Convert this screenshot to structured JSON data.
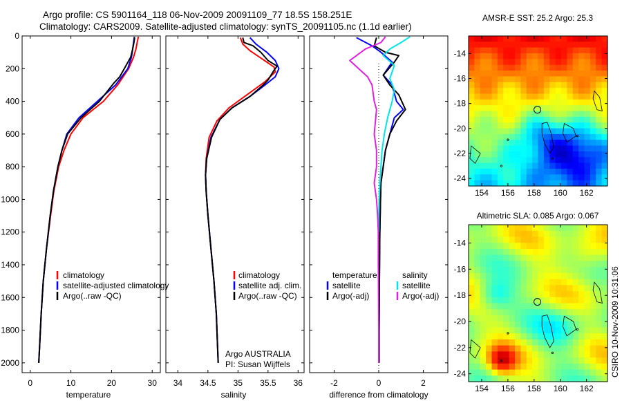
{
  "header": {
    "line1": "Argo profile: CS 5901164_118 06-Nov-2009 20091109_77 18.5S 158.251E",
    "line2": "Climatology: CARS2009. Satellite-adjusted climatology: synTS_20091105.nc (1.1d earlier)"
  },
  "credit": "CSIRO 10-Nov-2009 10:31:06",
  "colors": {
    "red": "#ff0000",
    "blue": "#0000ff",
    "black": "#000000",
    "cyan": "#00e5e5",
    "magenta": "#e020e0"
  },
  "chart_data": [
    {
      "type": "line",
      "xlabel": "temperature",
      "xlim": [
        -2,
        32
      ],
      "xticks": [
        "0",
        "10",
        "20",
        "30"
      ],
      "xtick_values": [
        0,
        10,
        20,
        30
      ],
      "ylim": [
        0,
        2060
      ],
      "yticks": [
        "0",
        "200",
        "400",
        "600",
        "800",
        "1000",
        "1200",
        "1400",
        "1600",
        "1800",
        "2000"
      ],
      "ytick_values": [
        0,
        200,
        400,
        600,
        800,
        1000,
        1200,
        1400,
        1600,
        1800,
        2000
      ],
      "legend_entries": [
        "climatology",
        "satellite-adjusted climatology",
        "Argo(..raw -QC)"
      ],
      "series": [
        {
          "name": "climatology",
          "color": "#ff0000",
          "points": [
            [
              26.6,
              5
            ],
            [
              26.3,
              40
            ],
            [
              26,
              80
            ],
            [
              25.4,
              130
            ],
            [
              24.2,
              200
            ],
            [
              21.5,
              300
            ],
            [
              18,
              400
            ],
            [
              13,
              500
            ],
            [
              10,
              600
            ],
            [
              8.3,
              700
            ],
            [
              7,
              800
            ],
            [
              5.8,
              950
            ],
            [
              5,
              1100
            ],
            [
              4,
              1300
            ],
            [
              3.2,
              1500
            ],
            [
              2.7,
              1700
            ],
            [
              2.3,
              1900
            ],
            [
              2.1,
              2000
            ]
          ]
        },
        {
          "name": "satellite-adjusted climatology",
          "color": "#0000ff",
          "points": [
            [
              25.6,
              5
            ],
            [
              25.4,
              40
            ],
            [
              25.2,
              80
            ],
            [
              24.9,
              130
            ],
            [
              24,
              200
            ],
            [
              21,
              300
            ],
            [
              16.5,
              400
            ],
            [
              12,
              500
            ],
            [
              9,
              600
            ],
            [
              7.8,
              700
            ],
            [
              6.8,
              800
            ],
            [
              5.7,
              950
            ],
            [
              4.9,
              1100
            ],
            [
              4,
              1300
            ],
            [
              3.2,
              1500
            ],
            [
              2.7,
              1700
            ],
            [
              2.3,
              1900
            ],
            [
              2.1,
              2000
            ]
          ]
        },
        {
          "name": "Argo(..raw -QC)",
          "color": "#000000",
          "points": [
            [
              25.7,
              10
            ],
            [
              25.5,
              40
            ],
            [
              25.2,
              80
            ],
            [
              24.7,
              130
            ],
            [
              23.8,
              170
            ],
            [
              22,
              250
            ],
            [
              20.5,
              290
            ],
            [
              17,
              400
            ],
            [
              12.5,
              500
            ],
            [
              9.2,
              600
            ],
            [
              7.8,
              700
            ],
            [
              6.8,
              800
            ],
            [
              5.7,
              950
            ],
            [
              4.9,
              1100
            ],
            [
              4,
              1300
            ],
            [
              3.2,
              1500
            ],
            [
              2.7,
              1700
            ],
            [
              2.3,
              1900
            ],
            [
              2.1,
              2000
            ]
          ]
        }
      ]
    },
    {
      "type": "line",
      "xlabel": "salinity",
      "xlim": [
        33.8,
        36.1
      ],
      "xticks": [
        "34",
        "34.5",
        "35",
        "35.5",
        "36"
      ],
      "xtick_values": [
        34,
        34.5,
        35,
        35.5,
        36
      ],
      "ylim": [
        0,
        2060
      ],
      "legend_entries": [
        "climatology",
        "satellite adj. clim.",
        "Argo(..raw -QC)"
      ],
      "annotation": [
        "Argo AUSTRALIA",
        "PI: Susan Wijffels"
      ],
      "series": [
        {
          "name": "climatology",
          "color": "#ff0000",
          "points": [
            [
              35.04,
              10
            ],
            [
              35.08,
              50
            ],
            [
              35.2,
              90
            ],
            [
              35.4,
              140
            ],
            [
              35.6,
              190
            ],
            [
              35.62,
              220
            ],
            [
              35.45,
              280
            ],
            [
              35.15,
              360
            ],
            [
              34.85,
              440
            ],
            [
              34.65,
              520
            ],
            [
              34.52,
              620
            ],
            [
              34.47,
              750
            ],
            [
              34.46,
              850
            ],
            [
              34.47,
              950
            ],
            [
              34.5,
              1100
            ],
            [
              34.55,
              1300
            ],
            [
              34.6,
              1500
            ],
            [
              34.64,
              1700
            ],
            [
              34.66,
              1900
            ],
            [
              34.67,
              2000
            ]
          ]
        },
        {
          "name": "satellite adj. clim.",
          "color": "#0000ff",
          "points": [
            [
              35.2,
              10
            ],
            [
              35.3,
              50
            ],
            [
              35.48,
              100
            ],
            [
              35.62,
              150
            ],
            [
              35.68,
              200
            ],
            [
              35.62,
              250
            ],
            [
              35.45,
              300
            ],
            [
              35.2,
              370
            ],
            [
              34.9,
              440
            ],
            [
              34.7,
              510
            ],
            [
              34.55,
              620
            ],
            [
              34.48,
              750
            ],
            [
              34.46,
              850
            ],
            [
              34.47,
              950
            ],
            [
              34.5,
              1100
            ],
            [
              34.55,
              1300
            ],
            [
              34.6,
              1500
            ],
            [
              34.64,
              1700
            ],
            [
              34.66,
              1900
            ],
            [
              34.67,
              2000
            ]
          ]
        },
        {
          "name": "Argo(..raw -QC)",
          "color": "#000000",
          "points": [
            [
              35.08,
              10
            ],
            [
              35.1,
              40
            ],
            [
              35.25,
              60
            ],
            [
              35.38,
              100
            ],
            [
              35.5,
              150
            ],
            [
              35.65,
              185
            ],
            [
              35.6,
              210
            ],
            [
              35.55,
              240
            ],
            [
              35.5,
              270
            ],
            [
              35.42,
              300
            ],
            [
              35.2,
              370
            ],
            [
              34.9,
              440
            ],
            [
              34.7,
              510
            ],
            [
              34.56,
              620
            ],
            [
              34.48,
              750
            ],
            [
              34.46,
              850
            ],
            [
              34.47,
              950
            ],
            [
              34.5,
              1100
            ],
            [
              34.55,
              1300
            ],
            [
              34.6,
              1500
            ],
            [
              34.64,
              1700
            ],
            [
              34.66,
              1900
            ],
            [
              34.67,
              2000
            ]
          ]
        }
      ]
    },
    {
      "type": "line",
      "xlabel": "difference from climatology",
      "xlim": [
        -3.1,
        3.1
      ],
      "xticks": [
        "-2",
        "0",
        "2"
      ],
      "xtick_values": [
        -2,
        0,
        2
      ],
      "ylim": [
        0,
        2060
      ],
      "legend_titles": [
        "temperature",
        "salinity"
      ],
      "legend_entries_temperature": [
        "satellite",
        "Argo(-adj)"
      ],
      "legend_entries_salinity": [
        "satellite",
        "Argo(-adj)"
      ],
      "series": [
        {
          "name": "temperature satellite",
          "color": "#0000ff",
          "points": [
            [
              -1,
              10
            ],
            [
              -0.3,
              60
            ],
            [
              0.1,
              100
            ],
            [
              0.6,
              160
            ],
            [
              0.2,
              240
            ],
            [
              0.6,
              300
            ],
            [
              0.8,
              400
            ],
            [
              1.1,
              450
            ],
            [
              0.7,
              500
            ],
            [
              0.5,
              600
            ],
            [
              0.3,
              700
            ],
            [
              0.2,
              800
            ],
            [
              0.1,
              900
            ],
            [
              0.08,
              1000
            ],
            [
              0.05,
              1200
            ],
            [
              0.03,
              1500
            ],
            [
              0.02,
              1800
            ],
            [
              0.02,
              2000
            ]
          ]
        },
        {
          "name": "temperature Argo(-adj)",
          "color": "#000000",
          "points": [
            [
              -0.1,
              10
            ],
            [
              -0.2,
              60
            ],
            [
              0.3,
              100
            ],
            [
              0.9,
              120
            ],
            [
              0.7,
              160
            ],
            [
              0.2,
              240
            ],
            [
              0.5,
              300
            ],
            [
              0.9,
              360
            ],
            [
              1.2,
              450
            ],
            [
              0.8,
              520
            ],
            [
              0.5,
              600
            ],
            [
              0.3,
              700
            ],
            [
              0.2,
              800
            ],
            [
              0.1,
              900
            ],
            [
              0.08,
              1000
            ],
            [
              0.05,
              1200
            ],
            [
              0.03,
              1500
            ],
            [
              0.02,
              1800
            ],
            [
              0.02,
              2000
            ]
          ]
        },
        {
          "name": "salinity satellite",
          "color": "#00e5e5",
          "points": [
            [
              1.4,
              5
            ],
            [
              1,
              40
            ],
            [
              0.5,
              80
            ],
            [
              0.2,
              120
            ],
            [
              0.7,
              180
            ],
            [
              0.6,
              220
            ],
            [
              0.5,
              260
            ],
            [
              0.7,
              330
            ],
            [
              0.6,
              400
            ],
            [
              0.4,
              500
            ],
            [
              0.25,
              600
            ],
            [
              0.15,
              700
            ],
            [
              0.1,
              800
            ],
            [
              0.05,
              900
            ],
            [
              0.02,
              1000
            ],
            [
              0,
              1100
            ],
            [
              0,
              1200
            ]
          ]
        },
        {
          "name": "salinity Argo(-adj)",
          "color": "#e020e0",
          "points": [
            [
              0.3,
              5
            ],
            [
              0.1,
              40
            ],
            [
              -0.6,
              80
            ],
            [
              -1.3,
              150
            ],
            [
              -0.5,
              250
            ],
            [
              -0.3,
              300
            ],
            [
              -0.2,
              400
            ],
            [
              -0.1,
              450
            ],
            [
              -0.2,
              600
            ],
            [
              -0.1,
              700
            ],
            [
              -0.1,
              800
            ],
            [
              -0.2,
              900
            ],
            [
              -0.1,
              1000
            ],
            [
              -0.05,
              1100
            ],
            [
              -0.02,
              1200
            ],
            [
              -0.02,
              1400
            ],
            [
              -0.01,
              1600
            ],
            [
              0,
              1800
            ],
            [
              0,
              2000
            ]
          ]
        }
      ]
    },
    {
      "type": "heatmap",
      "title": "AMSR-E SST: 25.2 Argo: 25.3",
      "xlim": [
        153,
        163.6
      ],
      "ylim": [
        -24.6,
        -12.6
      ],
      "xticks": [
        "154",
        "156",
        "158",
        "160",
        "162"
      ],
      "xtick_values": [
        154,
        156,
        158,
        160,
        162
      ],
      "yticks": [
        "-14",
        "-16",
        "-18",
        "-20",
        "-22",
        "-24"
      ],
      "ytick_values": [
        -14,
        -16,
        -18,
        -20,
        -22,
        -24
      ],
      "argo_position": {
        "lon": 158.251,
        "lat": -18.5
      },
      "colormap": "jet"
    },
    {
      "type": "heatmap",
      "title": "Altimetric SLA: 0.085 Argo: 0.067",
      "xlim": [
        153,
        163.6
      ],
      "ylim": [
        -24.6,
        -12.6
      ],
      "xticks": [
        "154",
        "156",
        "158",
        "160",
        "162"
      ],
      "xtick_values": [
        154,
        156,
        158,
        160,
        162
      ],
      "yticks": [
        "-14",
        "-16",
        "-18",
        "-20",
        "-22",
        "-24"
      ],
      "ytick_values": [
        -14,
        -16,
        -18,
        -20,
        -22,
        -24
      ],
      "argo_position": {
        "lon": 158.251,
        "lat": -18.5
      },
      "colormap": "jet"
    }
  ]
}
